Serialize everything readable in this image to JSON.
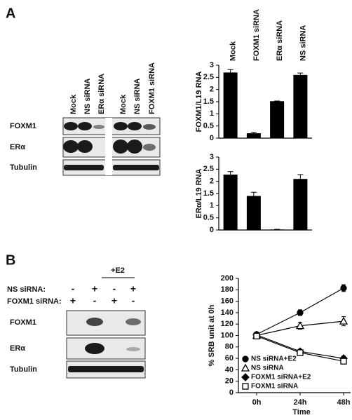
{
  "panels": [
    "A",
    "B"
  ],
  "blot_a": {
    "lanes": [
      "Mock",
      "NS siRNA",
      "ERα siRNA",
      "Mock",
      "NS siRNA",
      "FOXM1 siRNA"
    ],
    "rows": [
      "FOXM1",
      "ERα",
      "Tubulin"
    ]
  },
  "blot_b": {
    "group_label": "+E2",
    "conditions": [
      {
        "label": "NS siRNA:",
        "signs": [
          "-",
          "+",
          "-",
          "+"
        ]
      },
      {
        "label": "FOXM1 siRNA:",
        "signs": [
          "+",
          "-",
          "+",
          "-"
        ]
      }
    ],
    "rows": [
      "FOXM1",
      "ERα",
      "Tubulin"
    ]
  },
  "chart_data": [
    {
      "type": "bar",
      "ylabel": "FOXM1/L19 RNA",
      "categories": [
        "Mock",
        "FOXM1 siRNA",
        "ERα siRNA",
        "NS siRNA"
      ],
      "values": [
        2.7,
        0.2,
        1.52,
        2.6
      ],
      "errors": [
        0.12,
        0.04,
        0.01,
        0.08
      ],
      "color": "#000000",
      "ylim": [
        0,
        3
      ],
      "yticks": [
        0,
        0.5,
        1,
        1.5,
        2,
        2.5,
        3
      ]
    },
    {
      "type": "bar",
      "ylabel": "ERα/L19 RNA",
      "values": [
        2.28,
        1.4,
        0.02,
        2.1
      ],
      "errors": [
        0.12,
        0.15,
        0.01,
        0.18
      ],
      "color": "#000000",
      "ylim": [
        0,
        3
      ],
      "yticks": [
        0,
        0.5,
        1,
        1.5,
        2,
        2.5,
        3
      ]
    },
    {
      "type": "line",
      "xlabel": "Time",
      "ylabel": "% SRB unit at 0h",
      "categories": [
        "0h",
        "24h",
        "48h"
      ],
      "ylim": [
        0,
        200
      ],
      "yticks": [
        0,
        20,
        40,
        60,
        80,
        100,
        120,
        140,
        160,
        180,
        200
      ],
      "legend": "lower left",
      "series": [
        {
          "name": "NS siRNA+E2",
          "color": "#000000",
          "marker": "circle",
          "filled": true,
          "values": [
            102,
            140,
            183
          ],
          "errors": [
            3,
            5,
            6
          ]
        },
        {
          "name": "NS siRNA",
          "color": "#000000",
          "marker": "triangle",
          "filled": false,
          "values": [
            100,
            117,
            125
          ],
          "errors": [
            3,
            6,
            8
          ]
        },
        {
          "name": "FOXM1 siRNA+E2",
          "color": "#000000",
          "marker": "diamond",
          "filled": true,
          "values": [
            101,
            72,
            60
          ],
          "errors": [
            2,
            4,
            4
          ]
        },
        {
          "name": "FOXM1 siRNA",
          "color": "#000000",
          "marker": "square",
          "filled": false,
          "values": [
            99,
            70,
            55
          ],
          "errors": [
            2,
            3,
            4
          ]
        }
      ]
    }
  ]
}
